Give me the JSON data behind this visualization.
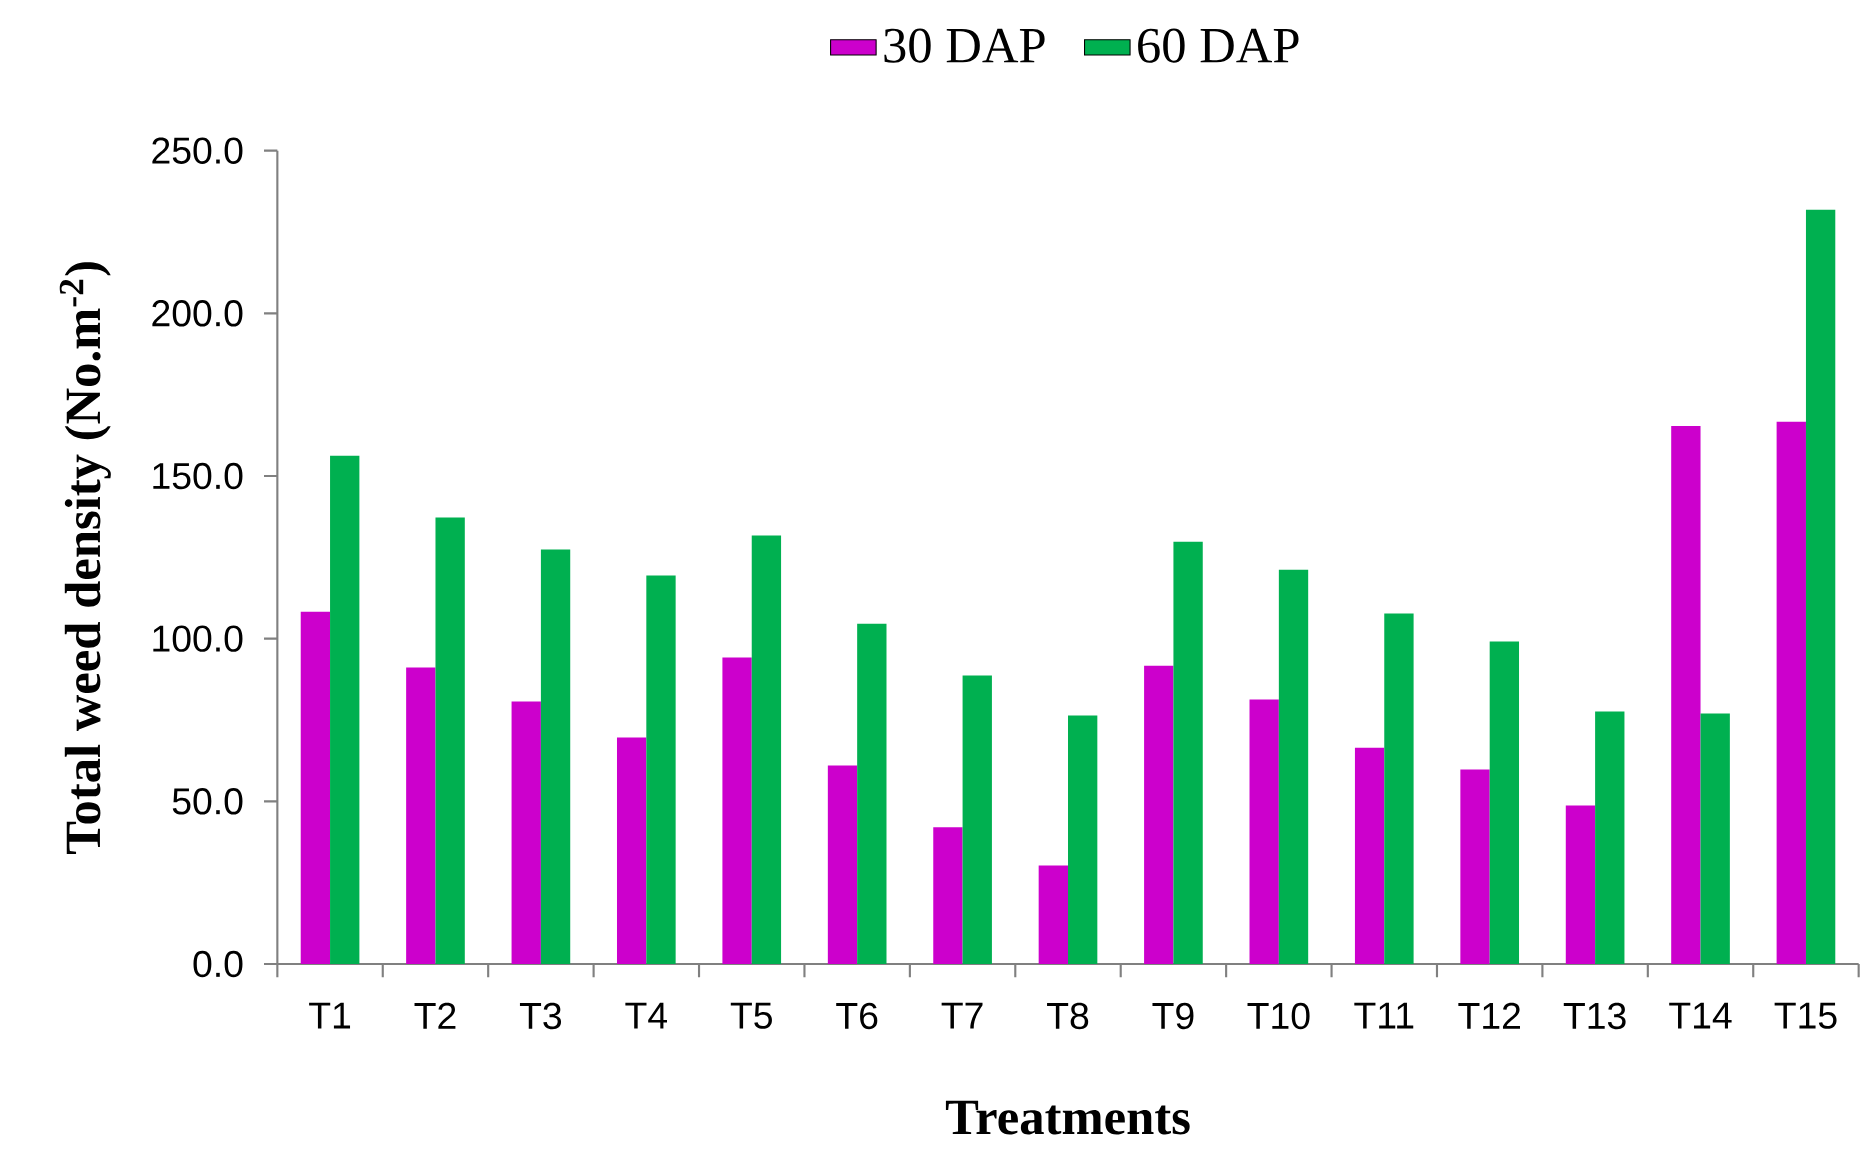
{
  "chart_data": {
    "type": "bar",
    "categories": [
      "T1",
      "T2",
      "T3",
      "T4",
      "T5",
      "T6",
      "T7",
      "T8",
      "T9",
      "T10",
      "T11",
      "T12",
      "T13",
      "T14",
      "T15"
    ],
    "series": [
      {
        "name": "30 DAP",
        "color": "#cc00cc",
        "values": [
          108.3,
          91.1,
          80.7,
          69.6,
          94.2,
          61.0,
          42.0,
          30.3,
          91.7,
          81.3,
          66.5,
          59.8,
          48.7,
          165.4,
          166.7
        ]
      },
      {
        "name": "60 DAP",
        "color": "#00b050",
        "values": [
          156.2,
          137.2,
          127.4,
          119.4,
          131.7,
          104.6,
          88.7,
          76.4,
          129.8,
          121.2,
          107.7,
          99.1,
          77.6,
          77.0,
          231.8
        ]
      }
    ],
    "xlabel": "Treatments",
    "ylabel": "Total weed density (No.m$^{-2}$)",
    "ylim": [
      0,
      250
    ],
    "yticks": [
      {
        "value": 0,
        "label": "0.0"
      },
      {
        "value": 50,
        "label": "50.0"
      },
      {
        "value": 100,
        "label": "100.0"
      },
      {
        "value": 150,
        "label": "150.0"
      },
      {
        "value": 200,
        "label": "200.0"
      },
      {
        "value": 250,
        "label": "250.0"
      }
    ],
    "legend": "top",
    "grid": false
  }
}
